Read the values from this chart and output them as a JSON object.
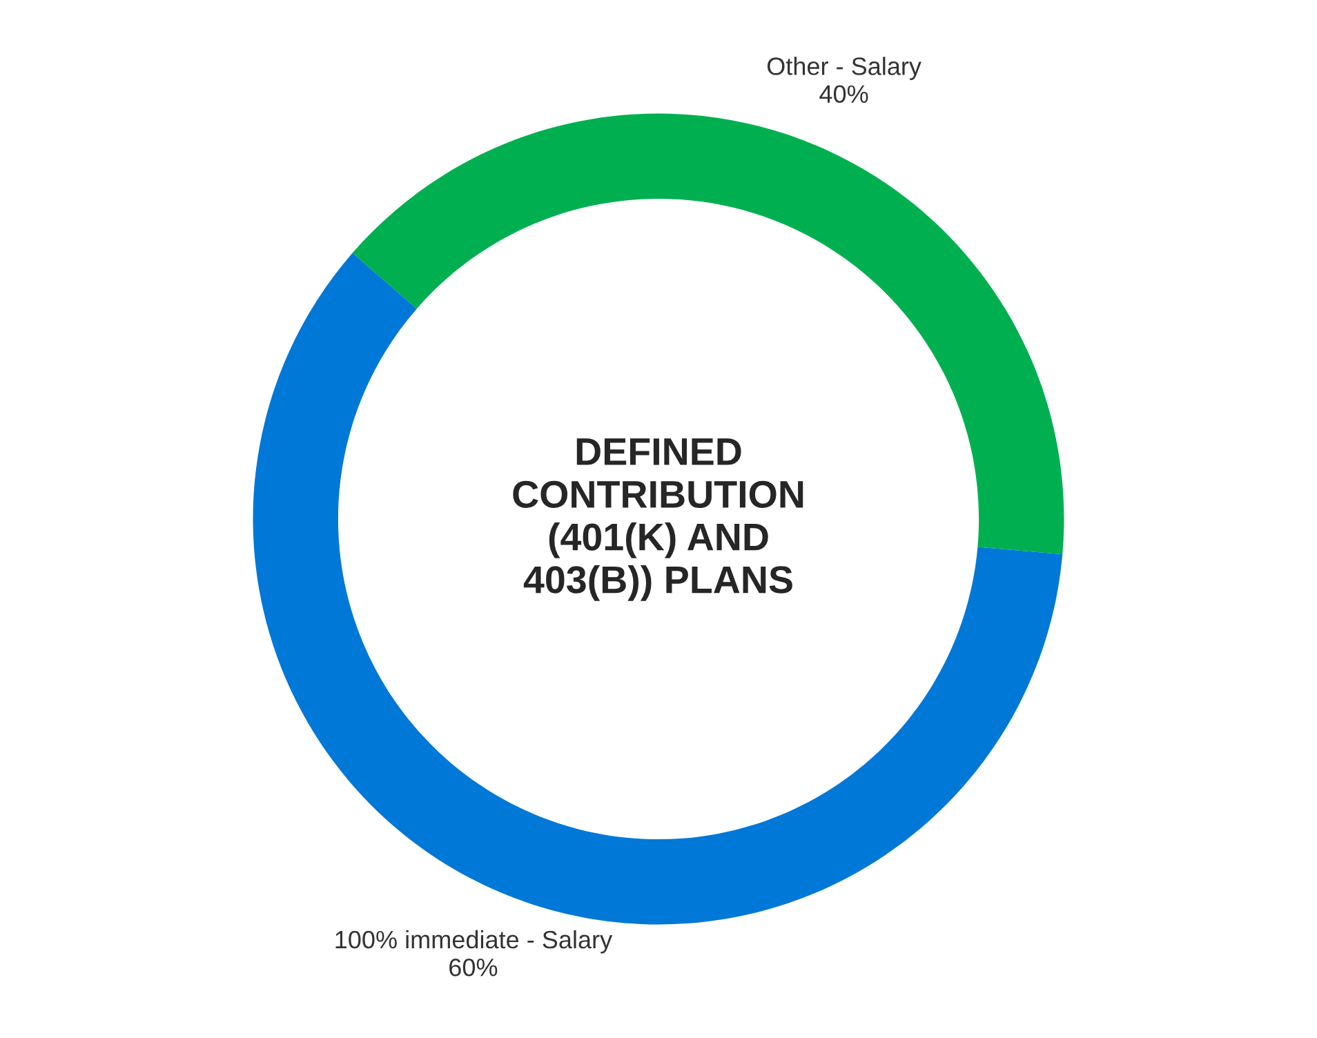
{
  "chart_data": {
    "type": "donut",
    "title": "DEFINED\nCONTRIBUTION\n(401(K) AND\n403(B)) PLANS",
    "categories": [
      "Other - Salary",
      "100% immediate - Salary"
    ],
    "values": [
      40,
      60
    ],
    "colors": [
      "#00b050",
      "#0078d7"
    ],
    "value_labels": [
      "40%",
      "60%"
    ]
  }
}
